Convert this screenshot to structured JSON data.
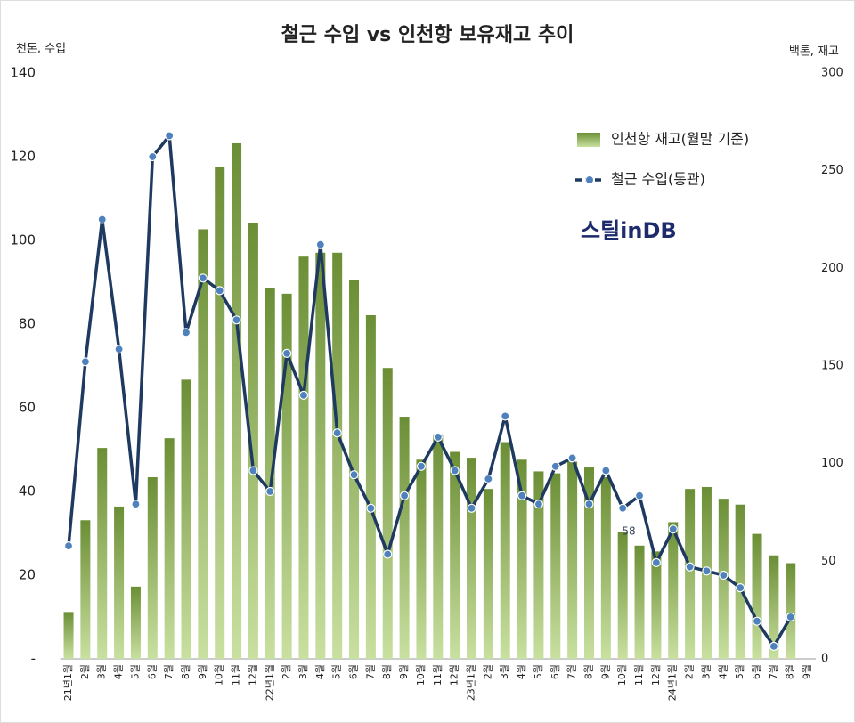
{
  "chart_data": {
    "type": "bar_line",
    "title": "철근 수입 vs 인천항 보유재고 추이",
    "y_label": "천톤, 수입",
    "y2_label": "백톤, 재고",
    "logo": "스틸inDB",
    "categories": [
      "21년1월",
      "2월",
      "3월",
      "4월",
      "5월",
      "6월",
      "7월",
      "8월",
      "9월",
      "10월",
      "11월",
      "12월",
      "22년1월",
      "2월",
      "3월",
      "4월",
      "5월",
      "6월",
      "7월",
      "8월",
      "9월",
      "10월",
      "11월",
      "12월",
      "23년1월",
      "2월",
      "3월",
      "4월",
      "5월",
      "6월",
      "7월",
      "8월",
      "9월",
      "10월",
      "11월",
      "12월",
      "24년1월",
      "2월",
      "3월",
      "4월",
      "5월",
      "6월",
      "7월",
      "8월",
      "9월"
    ],
    "ylim": [
      0,
      140
    ],
    "yticks": [
      {
        "value": 0,
        "label": "-"
      },
      20,
      40,
      60,
      80,
      100,
      120,
      140
    ],
    "y2lim": [
      0,
      300
    ],
    "y2ticks": [
      0,
      50,
      100,
      150,
      200,
      250,
      300
    ],
    "series": [
      {
        "name": "인천항 재고(월말 기준)",
        "type": "bar",
        "axis": "y2",
        "color": "#6b8e35",
        "values": [
          24,
          71,
          108,
          78,
          37,
          93,
          113,
          143,
          220,
          252,
          264,
          223,
          190,
          187,
          206,
          208,
          208,
          194,
          176,
          149,
          124,
          102,
          115,
          106,
          103,
          87,
          111,
          102,
          96,
          95,
          101,
          98,
          93,
          65,
          58,
          55,
          70,
          87,
          88,
          82,
          79,
          64,
          53,
          49,
          null
        ],
        "value_labels": [
          null,
          null,
          null,
          null,
          null,
          null,
          null,
          null,
          null,
          null,
          null,
          null,
          null,
          null,
          null,
          null,
          null,
          null,
          null,
          null,
          null,
          null,
          null,
          null,
          null,
          null,
          null,
          null,
          null,
          null,
          null,
          null,
          null,
          null,
          "58",
          null,
          null,
          null,
          null,
          null,
          null,
          null,
          null,
          null,
          null
        ]
      },
      {
        "name": "철근 수입(통관)",
        "type": "line",
        "axis": "y",
        "color": "#1f3a60",
        "marker_color": "#4f81bd",
        "values": [
          27,
          71,
          105,
          74,
          37,
          120,
          125,
          78,
          91,
          88,
          81,
          45,
          40,
          73,
          63,
          99,
          54,
          44,
          36,
          25,
          39,
          46,
          53,
          45,
          36,
          43,
          58,
          39,
          37,
          46,
          48,
          37,
          45,
          36,
          39,
          23,
          31,
          22,
          21,
          20,
          17,
          9,
          3,
          10,
          null
        ]
      }
    ]
  }
}
